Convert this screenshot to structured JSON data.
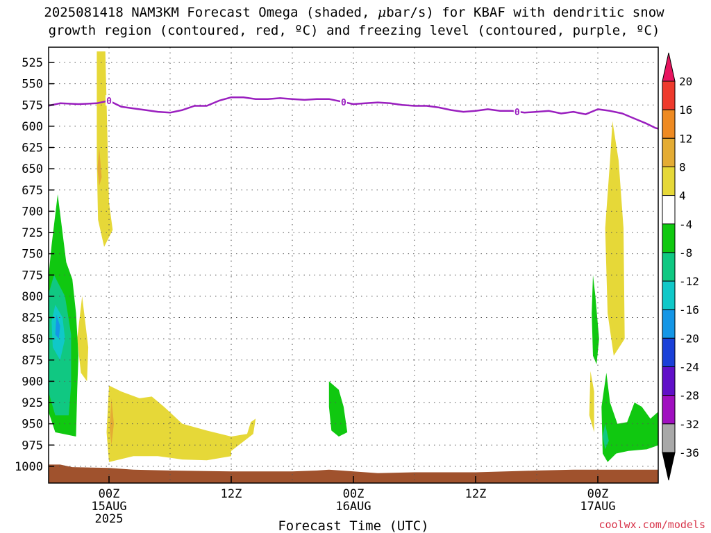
{
  "title": {
    "line1_pre": "2025081418 NAM3KM Forecast Omega (shaded, ",
    "line1_mu": "μ",
    "line1_post": "bar/s) for KBAF with dendritic snow",
    "line2": "growth region (contoured, red, ºC) and freezing level (contoured, purple, ºC)"
  },
  "credit": "coolwx.com/models",
  "chart_data": {
    "type": "heatmap",
    "xlabel": "Forecast Time (UTC)",
    "x_range_hours": [
      -10,
      40
    ],
    "ylim": [
      1010,
      512
    ],
    "y_ticks": [
      525,
      550,
      575,
      600,
      625,
      650,
      675,
      700,
      725,
      750,
      775,
      800,
      825,
      850,
      875,
      900,
      925,
      950,
      975,
      1000
    ],
    "x_ticks": [
      {
        "hour": 0,
        "lines": [
          "00Z",
          "15AUG",
          "2025"
        ]
      },
      {
        "hour": 10,
        "lines": [
          "12Z"
        ]
      },
      {
        "hour": 20,
        "lines": [
          "00Z",
          "16AUG"
        ]
      },
      {
        "hour": 30,
        "lines": [
          "12Z"
        ]
      },
      {
        "hour": 40,
        "lines": [
          "00Z",
          "17AUG"
        ]
      }
    ],
    "grid": true,
    "colorbar": {
      "placement": "right",
      "labels": [
        20,
        16,
        12,
        8,
        4,
        -4,
        -8,
        -12,
        -16,
        -20,
        -24,
        -28,
        -32,
        -36
      ],
      "colors": [
        "#e8145f",
        "#ee3a2c",
        "#ee8a22",
        "#e4ac34",
        "#e6d838",
        "#ffffff",
        "#10c810",
        "#10c882",
        "#10c8c8",
        "#1496e6",
        "#1a40d8",
        "#6010c8",
        "#a010c0",
        "#a8a8a8",
        "#000000"
      ]
    },
    "freezing_level_label": "0",
    "freezing_level": [
      [
        -10.0,
        585
      ],
      [
        -8.0,
        584
      ],
      [
        -6.0,
        579
      ],
      [
        -4.0,
        573
      ],
      [
        -2.5,
        574
      ],
      [
        -1.0,
        573
      ],
      [
        0.0,
        570
      ],
      [
        1.0,
        577
      ],
      [
        2.0,
        579
      ],
      [
        3.0,
        581
      ],
      [
        4.0,
        583
      ],
      [
        5.0,
        584
      ],
      [
        6.0,
        581
      ],
      [
        7.0,
        576
      ],
      [
        8.0,
        576
      ],
      [
        9.0,
        570
      ],
      [
        10.0,
        566
      ],
      [
        11.0,
        566
      ],
      [
        12.0,
        568
      ],
      [
        13.0,
        568
      ],
      [
        14.0,
        567
      ],
      [
        15.0,
        568
      ],
      [
        16.0,
        569
      ],
      [
        17.0,
        568
      ],
      [
        18.0,
        568
      ],
      [
        19.0,
        571
      ],
      [
        20.0,
        574
      ],
      [
        21.0,
        573
      ],
      [
        22.0,
        572
      ],
      [
        23.0,
        573
      ],
      [
        24.0,
        575
      ],
      [
        25.0,
        576
      ],
      [
        26.0,
        576
      ],
      [
        27.0,
        578
      ],
      [
        28.0,
        581
      ],
      [
        29.0,
        583
      ],
      [
        30.0,
        582
      ],
      [
        31.0,
        580
      ],
      [
        32.0,
        582
      ],
      [
        33.0,
        582
      ],
      [
        34.0,
        584
      ],
      [
        35.0,
        583
      ],
      [
        36.0,
        582
      ],
      [
        37.0,
        585
      ],
      [
        38.0,
        583
      ],
      [
        39.0,
        586
      ],
      [
        40.0,
        580
      ],
      [
        41.0,
        582
      ],
      [
        42.0,
        585
      ],
      [
        43.0,
        591
      ],
      [
        44.0,
        597
      ],
      [
        44.7,
        602
      ],
      [
        45.0,
        603
      ]
    ],
    "freezing_level_label_hours": [
      0.0,
      19.2,
      33.4
    ],
    "omega_regions": [
      {
        "level": "yellow",
        "points": [
          [
            -1.0,
            512
          ],
          [
            -0.3,
            512
          ],
          [
            0.0,
            690
          ],
          [
            0.3,
            722
          ],
          [
            -0.4,
            742
          ],
          [
            -0.9,
            710
          ],
          [
            -1.0,
            640
          ]
        ]
      },
      {
        "level": "yellow",
        "points": [
          [
            -2.2,
            800
          ],
          [
            -1.7,
            860
          ],
          [
            -1.8,
            900
          ],
          [
            -2.3,
            890
          ],
          [
            -2.6,
            850
          ]
        ]
      },
      {
        "level": "yellow",
        "points": [
          [
            -3.4,
            818
          ],
          [
            -3.0,
            860
          ],
          [
            -3.2,
            880
          ],
          [
            -3.6,
            850
          ]
        ]
      },
      {
        "level": "yellow",
        "points": [
          [
            -3.4,
            880
          ],
          [
            -3.2,
            905
          ],
          [
            -3.5,
            915
          ],
          [
            -3.6,
            895
          ]
        ]
      },
      {
        "level": "yellow",
        "points": [
          [
            0.0,
            905
          ],
          [
            1.0,
            912
          ],
          [
            2.5,
            920
          ],
          [
            3.5,
            918
          ],
          [
            4.5,
            930
          ],
          [
            6.0,
            950
          ],
          [
            8.0,
            958
          ],
          [
            10.0,
            965
          ],
          [
            10.0,
            988
          ],
          [
            8.0,
            993
          ],
          [
            6.0,
            992
          ],
          [
            4.0,
            988
          ],
          [
            2.0,
            988
          ],
          [
            0.0,
            995
          ],
          [
            -0.2,
            960
          ]
        ]
      },
      {
        "level": "yellow",
        "points": [
          [
            10.0,
            965
          ],
          [
            11.3,
            962
          ],
          [
            11.6,
            948
          ],
          [
            12.0,
            944
          ],
          [
            11.8,
            962
          ],
          [
            10.0,
            982
          ]
        ]
      },
      {
        "level": "yellow",
        "points": [
          [
            41.2,
            594
          ],
          [
            41.7,
            640
          ],
          [
            42.1,
            720
          ],
          [
            42.2,
            850
          ],
          [
            41.3,
            870
          ],
          [
            40.8,
            820
          ],
          [
            40.6,
            720
          ],
          [
            41.0,
            640
          ]
        ]
      },
      {
        "level": "yellow",
        "points": [
          [
            39.4,
            888
          ],
          [
            39.7,
            912
          ],
          [
            39.7,
            960
          ],
          [
            39.3,
            940
          ]
        ]
      },
      {
        "level": "orange",
        "points": [
          [
            -0.8,
            625
          ],
          [
            -0.6,
            660
          ],
          [
            -0.8,
            670
          ],
          [
            -0.95,
            650
          ]
        ]
      },
      {
        "level": "orange",
        "points": [
          [
            0.2,
            920
          ],
          [
            0.4,
            950
          ],
          [
            0.2,
            975
          ],
          [
            0.05,
            955
          ]
        ]
      },
      {
        "level": "green",
        "points": [
          [
            -10.0,
            528
          ],
          [
            -9.5,
            560
          ],
          [
            -9.3,
            640
          ],
          [
            -9.4,
            690
          ],
          [
            -9.8,
            730
          ],
          [
            -10.0,
            730
          ]
        ]
      },
      {
        "level": "green",
        "points": [
          [
            -10.0,
            800
          ],
          [
            -9.8,
            850
          ],
          [
            -10.0,
            880
          ]
        ]
      },
      {
        "level": "green",
        "points": [
          [
            -4.2,
            680
          ],
          [
            -3.5,
            760
          ],
          [
            -3.0,
            780
          ],
          [
            -2.7,
            820
          ],
          [
            -2.5,
            870
          ],
          [
            -2.6,
            910
          ],
          [
            -2.7,
            965
          ],
          [
            -4.4,
            960
          ],
          [
            -5.2,
            925
          ],
          [
            -5.5,
            880
          ],
          [
            -5.4,
            830
          ],
          [
            -5.1,
            800
          ],
          [
            -4.7,
            740
          ]
        ]
      },
      {
        "level": "green",
        "points": [
          [
            18.0,
            900
          ],
          [
            18.8,
            910
          ],
          [
            19.2,
            930
          ],
          [
            19.5,
            960
          ],
          [
            18.8,
            965
          ],
          [
            18.2,
            958
          ],
          [
            18.0,
            930
          ]
        ]
      },
      {
        "level": "green",
        "points": [
          [
            39.6,
            775
          ],
          [
            39.8,
            800
          ],
          [
            40.1,
            850
          ],
          [
            39.9,
            880
          ],
          [
            39.6,
            870
          ],
          [
            39.5,
            820
          ]
        ]
      },
      {
        "level": "green",
        "points": [
          [
            40.7,
            890
          ],
          [
            41.0,
            925
          ],
          [
            41.6,
            950
          ],
          [
            42.4,
            948
          ],
          [
            43.0,
            925
          ],
          [
            43.6,
            930
          ],
          [
            44.3,
            944
          ],
          [
            45.0,
            935
          ],
          [
            45.0,
            975
          ],
          [
            44.0,
            980
          ],
          [
            42.5,
            982
          ],
          [
            41.5,
            985
          ],
          [
            40.8,
            995
          ],
          [
            40.4,
            985
          ],
          [
            40.3,
            930
          ]
        ]
      },
      {
        "level": "teal",
        "points": [
          [
            -4.5,
            775
          ],
          [
            -3.6,
            800
          ],
          [
            -3.1,
            845
          ],
          [
            -3.1,
            905
          ],
          [
            -3.3,
            940
          ],
          [
            -4.4,
            940
          ],
          [
            -5.0,
            910
          ],
          [
            -5.2,
            860
          ],
          [
            -5.0,
            800
          ]
        ]
      },
      {
        "level": "cyan",
        "points": [
          [
            -4.4,
            810
          ],
          [
            -3.8,
            825
          ],
          [
            -3.6,
            850
          ],
          [
            -4.0,
            875
          ],
          [
            -4.6,
            860
          ],
          [
            -4.7,
            830
          ]
        ]
      },
      {
        "level": "blue",
        "points": [
          [
            -4.3,
            822
          ],
          [
            -4.0,
            835
          ],
          [
            -4.1,
            850
          ],
          [
            -4.4,
            845
          ]
        ]
      },
      {
        "level": "teal",
        "points": [
          [
            40.6,
            950
          ],
          [
            40.9,
            970
          ],
          [
            40.6,
            980
          ],
          [
            40.4,
            965
          ]
        ]
      }
    ],
    "terrain": [
      [
        -10.0,
        1001
      ],
      [
        -7.0,
        998
      ],
      [
        -4.0,
        998
      ],
      [
        -3.0,
        1001
      ],
      [
        0.0,
        1002
      ],
      [
        2.0,
        1004
      ],
      [
        5.0,
        1005
      ],
      [
        10.0,
        1006
      ],
      [
        15.0,
        1006
      ],
      [
        17.0,
        1005
      ],
      [
        18.0,
        1004
      ],
      [
        20.0,
        1006
      ],
      [
        22.0,
        1008
      ],
      [
        25.0,
        1007
      ],
      [
        30.0,
        1007
      ],
      [
        35.0,
        1005
      ],
      [
        38.0,
        1004
      ],
      [
        41.0,
        1004
      ],
      [
        45.0,
        1004
      ]
    ]
  }
}
